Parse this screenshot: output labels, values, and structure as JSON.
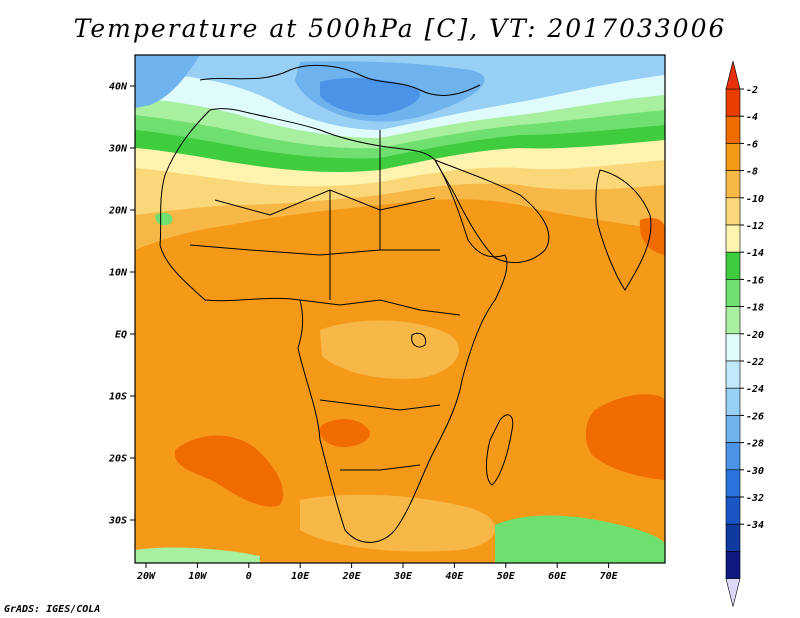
{
  "title": "Temperature at 500hPa [C], VT: 2017033006",
  "credit": "GrADS: IGES/COLA",
  "map": {
    "lon_labels": [
      "20W",
      "10W",
      "0",
      "10E",
      "20E",
      "30E",
      "40E",
      "50E",
      "60E",
      "70E"
    ],
    "lat_labels": [
      "40N",
      "30N",
      "20N",
      "10N",
      "EQ",
      "10S",
      "20S",
      "30S"
    ]
  },
  "colorbar": {
    "labels": [
      "-2",
      "-4",
      "-6",
      "-8",
      "-10",
      "-12",
      "-14",
      "-16",
      "-18",
      "-20",
      "-22",
      "-24",
      "-26",
      "-28",
      "-30",
      "-32",
      "-34"
    ],
    "colors": [
      "#e83c00",
      "#f06c00",
      "#f59a18",
      "#f8b848",
      "#fad778",
      "#fff3b0",
      "#3fcc3f",
      "#6fe06f",
      "#a8f0a0",
      "#e0fbfb",
      "#bfe8fb",
      "#98cff5",
      "#6fb3ee",
      "#4a93e6",
      "#2b72dd",
      "#1a55c5",
      "#0f3aa0",
      "#101880"
    ],
    "top_arrow_color": "#e8320a",
    "bottom_arrow_color": "#dcd8fa"
  },
  "field_colors": {
    "cold_core": "#4a93e6",
    "cold": "#6fb3ee",
    "cool": "#98cff5",
    "pale": "#e0fbfb",
    "green_light": "#a8f0a0",
    "green": "#6fe06f",
    "green_dark": "#3fcc3f",
    "yellow_pale": "#fff3b0",
    "yellow": "#fad778",
    "orange_light": "#f8b848",
    "orange": "#f59a18",
    "orange_dark": "#f06c00",
    "red": "#e83c00"
  }
}
